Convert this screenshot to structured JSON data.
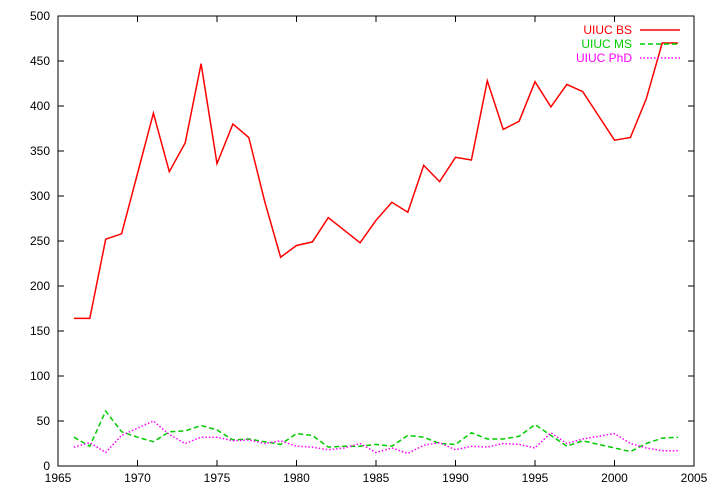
{
  "chart_data": {
    "type": "line",
    "x": [
      1966,
      1967,
      1968,
      1969,
      1970,
      1971,
      1972,
      1973,
      1974,
      1975,
      1976,
      1977,
      1978,
      1979,
      1980,
      1981,
      1982,
      1983,
      1984,
      1985,
      1986,
      1987,
      1988,
      1989,
      1990,
      1991,
      1992,
      1993,
      1994,
      1995,
      1996,
      1997,
      1998,
      1999,
      2000,
      2001,
      2002,
      2003,
      2004
    ],
    "series": [
      {
        "name": "UIUC BS",
        "color": "#ff0000",
        "dash": "solid",
        "values": [
          164,
          164,
          252,
          258,
          325,
          392,
          327,
          359,
          447,
          336,
          380,
          365,
          294,
          232,
          245,
          249,
          276,
          262,
          248,
          273,
          293,
          282,
          334,
          316,
          343,
          340,
          428,
          374,
          383,
          427,
          399,
          424,
          416,
          389,
          362,
          365,
          408,
          470,
          470
        ]
      },
      {
        "name": "UIUC MS",
        "color": "#00cc00",
        "dash": "dashed",
        "values": [
          32,
          22,
          61,
          38,
          32,
          27,
          38,
          39,
          45,
          40,
          29,
          30,
          27,
          24,
          36,
          34,
          21,
          22,
          22,
          24,
          22,
          34,
          32,
          25,
          24,
          37,
          30,
          30,
          33,
          46,
          34,
          22,
          28,
          24,
          20,
          16,
          25,
          31,
          32
        ]
      },
      {
        "name": "UIUC PhD",
        "color": "#ff00ff",
        "dash": "dotted",
        "values": [
          21,
          26,
          15,
          34,
          42,
          50,
          35,
          25,
          32,
          32,
          28,
          29,
          25,
          28,
          22,
          21,
          18,
          20,
          25,
          15,
          20,
          14,
          23,
          26,
          18,
          22,
          21,
          25,
          24,
          20,
          37,
          25,
          30,
          33,
          36,
          25,
          20,
          17,
          17
        ]
      }
    ],
    "xlim": [
      1965,
      2005
    ],
    "ylim": [
      0,
      500
    ],
    "xticks": [
      1965,
      1970,
      1975,
      1980,
      1985,
      1990,
      1995,
      2000,
      2005
    ],
    "yticks": [
      0,
      50,
      100,
      150,
      200,
      250,
      300,
      350,
      400,
      450,
      500
    ],
    "grid": false,
    "legend_position": "top-right"
  }
}
